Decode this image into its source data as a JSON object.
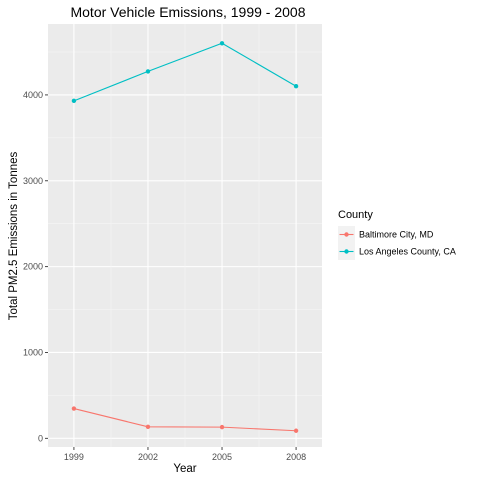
{
  "chart_data": {
    "type": "line",
    "title": "Motor Vehicle Emissions, 1999 - 2008",
    "xlabel": "Year",
    "ylabel": "Total PM2.5 Emissions in Tonnes",
    "x": [
      1999,
      2002,
      2005,
      2008
    ],
    "x_tick_labels": [
      "1999",
      "2002",
      "2005",
      "2008"
    ],
    "y_ticks": [
      0,
      1000,
      2000,
      3000,
      4000
    ],
    "y_tick_labels": [
      "0",
      "1000",
      "2000",
      "3000",
      "4000"
    ],
    "xlim": [
      1997.95,
      2009.05
    ],
    "ylim": [
      -101,
      4826
    ],
    "grid": true,
    "legend": {
      "title": "County",
      "position": "right"
    },
    "series": [
      {
        "name": "Baltimore City, MD",
        "color": "#F8766D",
        "values": [
          346.82,
          134.31,
          130.43,
          88.28
        ]
      },
      {
        "name": "Los Angeles County, CA",
        "color": "#00BFC4",
        "values": [
          3931.12,
          4273.71,
          4601.41,
          4101.32
        ]
      }
    ]
  }
}
